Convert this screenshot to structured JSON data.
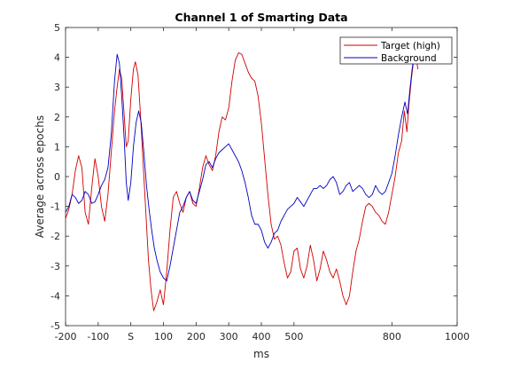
{
  "chart_data": {
    "type": "line",
    "title": "Channel 1 of Smarting Data",
    "xlabel": "ms",
    "ylabel": "Average across epochs",
    "xlim": [
      -200,
      1000
    ],
    "ylim": [
      -5,
      5
    ],
    "xticks": [
      -200,
      -100,
      0,
      100,
      200,
      300,
      400,
      500,
      800,
      1000
    ],
    "xtick_labels": [
      "-200",
      "-100",
      "S",
      "100",
      "200",
      "300",
      "400",
      "500",
      "800",
      "1000"
    ],
    "yticks": [
      -5,
      -4,
      -3,
      -2,
      -1,
      0,
      1,
      2,
      3,
      4,
      5
    ],
    "ytick_labels": [
      "-5",
      "-4",
      "-3",
      "-2",
      "-1",
      "0",
      "1",
      "2",
      "3",
      "4",
      "5"
    ],
    "legend_position": "top-right",
    "series": [
      {
        "name": "Target (high)",
        "color": "#d00000",
        "points": [
          [
            -200,
            -1.4
          ],
          [
            -190,
            -1.1
          ],
          [
            -180,
            -0.6
          ],
          [
            -170,
            0.2
          ],
          [
            -160,
            0.7
          ],
          [
            -150,
            0.3
          ],
          [
            -140,
            -1.2
          ],
          [
            -130,
            -1.6
          ],
          [
            -120,
            -0.4
          ],
          [
            -110,
            0.6
          ],
          [
            -100,
            0.0
          ],
          [
            -90,
            -1.0
          ],
          [
            -80,
            -1.5
          ],
          [
            -70,
            -0.6
          ],
          [
            -60,
            0.8
          ],
          [
            -50,
            2.2
          ],
          [
            -42,
            3.0
          ],
          [
            -35,
            3.6
          ],
          [
            -28,
            3.3
          ],
          [
            -20,
            2.0
          ],
          [
            -14,
            1.0
          ],
          [
            -8,
            1.2
          ],
          [
            0,
            2.6
          ],
          [
            8,
            3.6
          ],
          [
            14,
            3.85
          ],
          [
            22,
            3.4
          ],
          [
            30,
            2.0
          ],
          [
            38,
            0.4
          ],
          [
            46,
            -1.2
          ],
          [
            54,
            -2.8
          ],
          [
            62,
            -3.8
          ],
          [
            70,
            -4.5
          ],
          [
            80,
            -4.2
          ],
          [
            90,
            -3.8
          ],
          [
            100,
            -4.3
          ],
          [
            110,
            -3.2
          ],
          [
            120,
            -1.8
          ],
          [
            130,
            -0.7
          ],
          [
            140,
            -0.5
          ],
          [
            150,
            -0.9
          ],
          [
            160,
            -1.2
          ],
          [
            170,
            -0.7
          ],
          [
            180,
            -0.5
          ],
          [
            190,
            -0.9
          ],
          [
            200,
            -1.0
          ],
          [
            210,
            -0.4
          ],
          [
            220,
            0.3
          ],
          [
            230,
            0.7
          ],
          [
            240,
            0.4
          ],
          [
            250,
            0.2
          ],
          [
            260,
            0.7
          ],
          [
            270,
            1.5
          ],
          [
            280,
            2.0
          ],
          [
            290,
            1.9
          ],
          [
            300,
            2.3
          ],
          [
            310,
            3.2
          ],
          [
            320,
            3.9
          ],
          [
            330,
            4.15
          ],
          [
            340,
            4.1
          ],
          [
            350,
            3.8
          ],
          [
            360,
            3.5
          ],
          [
            370,
            3.3
          ],
          [
            380,
            3.2
          ],
          [
            390,
            2.7
          ],
          [
            400,
            1.8
          ],
          [
            410,
            0.6
          ],
          [
            420,
            -0.6
          ],
          [
            430,
            -1.6
          ],
          [
            440,
            -2.1
          ],
          [
            450,
            -2.0
          ],
          [
            460,
            -2.3
          ],
          [
            470,
            -2.9
          ],
          [
            480,
            -3.4
          ],
          [
            490,
            -3.2
          ],
          [
            500,
            -2.5
          ],
          [
            510,
            -2.4
          ],
          [
            520,
            -3.1
          ],
          [
            530,
            -3.4
          ],
          [
            540,
            -3.0
          ],
          [
            550,
            -2.3
          ],
          [
            560,
            -2.8
          ],
          [
            570,
            -3.5
          ],
          [
            580,
            -3.1
          ],
          [
            590,
            -2.5
          ],
          [
            600,
            -2.8
          ],
          [
            610,
            -3.2
          ],
          [
            620,
            -3.4
          ],
          [
            630,
            -3.1
          ],
          [
            640,
            -3.5
          ],
          [
            650,
            -4.0
          ],
          [
            660,
            -4.3
          ],
          [
            670,
            -4.0
          ],
          [
            680,
            -3.2
          ],
          [
            690,
            -2.5
          ],
          [
            700,
            -2.1
          ],
          [
            710,
            -1.5
          ],
          [
            720,
            -1.0
          ],
          [
            730,
            -0.9
          ],
          [
            740,
            -1.0
          ],
          [
            750,
            -1.2
          ],
          [
            760,
            -1.3
          ],
          [
            770,
            -1.5
          ],
          [
            780,
            -1.6
          ],
          [
            790,
            -1.2
          ],
          [
            800,
            -0.6
          ],
          [
            810,
            0.0
          ],
          [
            820,
            0.8
          ],
          [
            830,
            1.2
          ],
          [
            838,
            2.2
          ],
          [
            846,
            1.5
          ],
          [
            852,
            2.4
          ],
          [
            860,
            3.3
          ],
          [
            870,
            4.2
          ],
          [
            880,
            3.6
          ]
        ]
      },
      {
        "name": "Background",
        "color": "#0000c0",
        "points": [
          [
            -200,
            -1.2
          ],
          [
            -190,
            -1.0
          ],
          [
            -180,
            -0.6
          ],
          [
            -170,
            -0.7
          ],
          [
            -160,
            -0.9
          ],
          [
            -150,
            -0.8
          ],
          [
            -140,
            -0.5
          ],
          [
            -130,
            -0.6
          ],
          [
            -120,
            -0.9
          ],
          [
            -110,
            -0.85
          ],
          [
            -100,
            -0.6
          ],
          [
            -90,
            -0.3
          ],
          [
            -80,
            -0.1
          ],
          [
            -70,
            0.3
          ],
          [
            -60,
            1.4
          ],
          [
            -50,
            3.2
          ],
          [
            -42,
            4.1
          ],
          [
            -35,
            3.8
          ],
          [
            -28,
            2.7
          ],
          [
            -20,
            1.2
          ],
          [
            -14,
            -0.2
          ],
          [
            -8,
            -0.8
          ],
          [
            0,
            -0.2
          ],
          [
            8,
            1.0
          ],
          [
            16,
            1.8
          ],
          [
            24,
            2.2
          ],
          [
            32,
            1.8
          ],
          [
            40,
            0.8
          ],
          [
            48,
            -0.3
          ],
          [
            56,
            -1.1
          ],
          [
            64,
            -1.8
          ],
          [
            72,
            -2.4
          ],
          [
            80,
            -2.8
          ],
          [
            90,
            -3.2
          ],
          [
            100,
            -3.4
          ],
          [
            110,
            -3.5
          ],
          [
            120,
            -3.0
          ],
          [
            130,
            -2.4
          ],
          [
            140,
            -1.8
          ],
          [
            150,
            -1.2
          ],
          [
            160,
            -1.0
          ],
          [
            170,
            -0.7
          ],
          [
            180,
            -0.5
          ],
          [
            190,
            -0.8
          ],
          [
            200,
            -0.9
          ],
          [
            210,
            -0.5
          ],
          [
            220,
            -0.1
          ],
          [
            230,
            0.4
          ],
          [
            240,
            0.5
          ],
          [
            250,
            0.3
          ],
          [
            260,
            0.6
          ],
          [
            270,
            0.8
          ],
          [
            280,
            0.9
          ],
          [
            290,
            1.0
          ],
          [
            300,
            1.1
          ],
          [
            310,
            0.9
          ],
          [
            320,
            0.7
          ],
          [
            330,
            0.5
          ],
          [
            340,
            0.2
          ],
          [
            350,
            -0.2
          ],
          [
            360,
            -0.7
          ],
          [
            370,
            -1.3
          ],
          [
            380,
            -1.6
          ],
          [
            390,
            -1.6
          ],
          [
            400,
            -1.8
          ],
          [
            410,
            -2.2
          ],
          [
            420,
            -2.4
          ],
          [
            430,
            -2.2
          ],
          [
            440,
            -1.9
          ],
          [
            450,
            -1.8
          ],
          [
            460,
            -1.5
          ],
          [
            470,
            -1.3
          ],
          [
            480,
            -1.1
          ],
          [
            490,
            -1.0
          ],
          [
            500,
            -0.9
          ],
          [
            510,
            -0.7
          ],
          [
            520,
            -0.85
          ],
          [
            530,
            -1.0
          ],
          [
            540,
            -0.8
          ],
          [
            550,
            -0.6
          ],
          [
            560,
            -0.4
          ],
          [
            570,
            -0.4
          ],
          [
            580,
            -0.3
          ],
          [
            590,
            -0.4
          ],
          [
            600,
            -0.3
          ],
          [
            610,
            -0.1
          ],
          [
            620,
            0.0
          ],
          [
            630,
            -0.2
          ],
          [
            640,
            -0.6
          ],
          [
            650,
            -0.5
          ],
          [
            660,
            -0.3
          ],
          [
            670,
            -0.2
          ],
          [
            680,
            -0.5
          ],
          [
            690,
            -0.4
          ],
          [
            700,
            -0.3
          ],
          [
            710,
            -0.4
          ],
          [
            720,
            -0.6
          ],
          [
            730,
            -0.7
          ],
          [
            740,
            -0.6
          ],
          [
            750,
            -0.3
          ],
          [
            760,
            -0.5
          ],
          [
            770,
            -0.6
          ],
          [
            780,
            -0.5
          ],
          [
            790,
            -0.2
          ],
          [
            800,
            0.1
          ],
          [
            810,
            0.7
          ],
          [
            820,
            1.4
          ],
          [
            830,
            2.0
          ],
          [
            840,
            2.5
          ],
          [
            848,
            2.1
          ],
          [
            855,
            2.9
          ],
          [
            862,
            3.6
          ],
          [
            870,
            4.2
          ],
          [
            880,
            4.3
          ]
        ]
      }
    ]
  }
}
